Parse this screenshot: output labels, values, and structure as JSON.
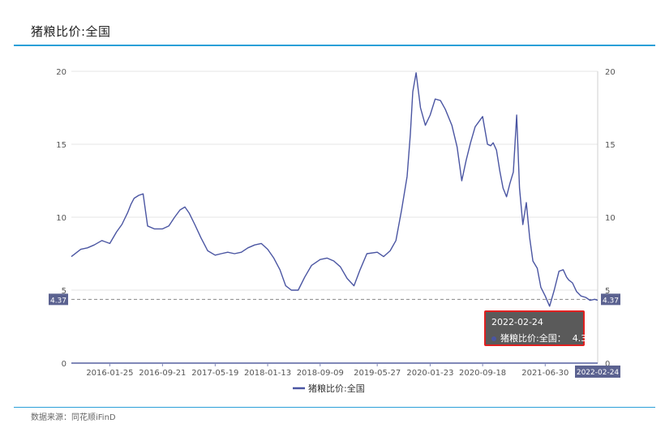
{
  "page": {
    "title": "猪粮比价:全国",
    "source": "数据来源：同花顺iFinD"
  },
  "colors": {
    "series": "#4a55a2",
    "accent_rule": "#2a9fd8",
    "tooltip_border": "#e02020",
    "axis_badge": "#5b6290"
  },
  "tooltip": {
    "date": "2022-02-24",
    "label": "猪粮比价:全国：",
    "value": "4.31"
  },
  "chart_data": {
    "type": "line",
    "title": "",
    "xlabel": "",
    "ylabel": "",
    "ylim": [
      0,
      20
    ],
    "yticks": [
      "0",
      "5",
      "10",
      "15",
      "20"
    ],
    "x_ticks": [
      "2016-01-25",
      "2016-09-21",
      "2017-05-19",
      "2018-01-13",
      "2018-09-09",
      "2019-05-27",
      "2020-01-23",
      "2020-09-18",
      "2021-06-30"
    ],
    "x_range": [
      "2015-08-03",
      "2022-02-24"
    ],
    "end_label": "2022-02-24",
    "markline_value": "4.37",
    "legend_position": "bottom-center",
    "grid": true,
    "series": [
      {
        "name": "猪粮比价:全国",
        "x": [
          "2015-08-03",
          "2015-09-15",
          "2015-10-15",
          "2015-11-15",
          "2015-12-20",
          "2016-01-25",
          "2016-02-25",
          "2016-03-20",
          "2016-04-15",
          "2016-05-01",
          "2016-05-15",
          "2016-06-05",
          "2016-06-25",
          "2016-07-15",
          "2016-08-15",
          "2016-09-21",
          "2016-10-20",
          "2016-11-15",
          "2016-12-10",
          "2017-01-01",
          "2017-01-20",
          "2017-02-15",
          "2017-03-15",
          "2017-04-15",
          "2017-05-19",
          "2017-06-15",
          "2017-07-15",
          "2017-08-15",
          "2017-09-15",
          "2017-10-15",
          "2017-11-15",
          "2017-12-15",
          "2018-01-13",
          "2018-02-10",
          "2018-03-10",
          "2018-04-05",
          "2018-05-01",
          "2018-06-01",
          "2018-07-01",
          "2018-08-01",
          "2018-09-09",
          "2018-10-10",
          "2018-11-10",
          "2018-12-10",
          "2019-01-10",
          "2019-02-10",
          "2019-03-10",
          "2019-04-10",
          "2019-05-27",
          "2019-06-25",
          "2019-07-25",
          "2019-08-20",
          "2019-09-15",
          "2019-10-10",
          "2019-10-25",
          "2019-11-05",
          "2019-11-20",
          "2019-12-10",
          "2020-01-01",
          "2020-01-23",
          "2020-02-15",
          "2020-03-10",
          "2020-04-01",
          "2020-05-01",
          "2020-05-25",
          "2020-06-15",
          "2020-07-05",
          "2020-07-25",
          "2020-08-15",
          "2020-09-18",
          "2020-10-10",
          "2020-10-25",
          "2020-11-05",
          "2020-11-20",
          "2020-12-05",
          "2020-12-20",
          "2021-01-05",
          "2021-01-20",
          "2021-02-05",
          "2021-02-20",
          "2021-03-05",
          "2021-03-20",
          "2021-04-05",
          "2021-04-20",
          "2021-05-05",
          "2021-05-25",
          "2021-06-10",
          "2021-06-30",
          "2021-07-20",
          "2021-08-10",
          "2021-09-01",
          "2021-09-20",
          "2021-10-05",
          "2021-10-15",
          "2021-11-01",
          "2021-11-20",
          "2021-12-10",
          "2022-01-01",
          "2022-01-20",
          "2022-02-10",
          "2022-02-24"
        ],
        "values": [
          7.3,
          7.8,
          7.9,
          8.1,
          8.4,
          8.2,
          9.0,
          9.5,
          10.3,
          10.9,
          11.3,
          11.5,
          11.6,
          9.4,
          9.2,
          9.2,
          9.4,
          10.0,
          10.5,
          10.7,
          10.3,
          9.5,
          8.6,
          7.7,
          7.4,
          7.5,
          7.6,
          7.5,
          7.6,
          7.9,
          8.1,
          8.2,
          7.8,
          7.2,
          6.4,
          5.3,
          5.0,
          5.0,
          5.9,
          6.7,
          7.1,
          7.2,
          7.0,
          6.6,
          5.8,
          5.3,
          6.4,
          7.5,
          7.6,
          7.3,
          7.7,
          8.4,
          10.5,
          12.8,
          15.7,
          18.6,
          19.9,
          17.5,
          16.3,
          17.0,
          18.1,
          18.0,
          17.4,
          16.3,
          14.8,
          12.5,
          13.9,
          15.1,
          16.2,
          16.9,
          15.0,
          14.9,
          15.1,
          14.6,
          13.2,
          12.0,
          11.4,
          12.3,
          13.1,
          17.0,
          12.0,
          9.5,
          11.0,
          8.6,
          7.0,
          6.5,
          5.2,
          4.6,
          3.9,
          5.0,
          6.3,
          6.4,
          5.9,
          5.7,
          5.5,
          4.9,
          4.6,
          4.5,
          4.3,
          4.37,
          4.31
        ]
      }
    ]
  }
}
